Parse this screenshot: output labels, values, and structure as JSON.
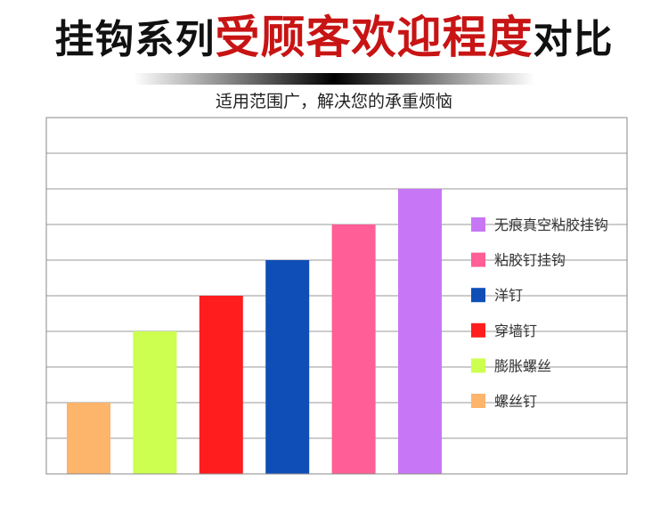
{
  "header": {
    "title_part1": "挂钩系列",
    "title_part2": "受顾客欢迎程度",
    "title_part3": "对比",
    "subtitle": "适用范围广，解决您的承重烦恼"
  },
  "chart_data": {
    "type": "bar",
    "categories": [
      "螺丝钉",
      "膨胀螺丝",
      "穿墙钉",
      "洋钉",
      "粘胶钉挂钩",
      "无痕真空粘胶挂钩"
    ],
    "values": [
      2,
      4,
      5,
      6,
      7,
      8
    ],
    "colors": [
      "#FDB46B",
      "#CCFF4F",
      "#FF1D1D",
      "#0F4EB6",
      "#FF5E96",
      "#C777F5"
    ],
    "ylim": [
      0,
      10
    ],
    "grid": true,
    "legend_position": "right",
    "legend": [
      "无痕真空粘胶挂钩",
      "粘胶钉挂钩",
      "洋钉",
      "穿墙钉",
      "膨胀螺丝",
      "螺丝钉"
    ],
    "title": "",
    "xlabel": "",
    "ylabel": ""
  }
}
